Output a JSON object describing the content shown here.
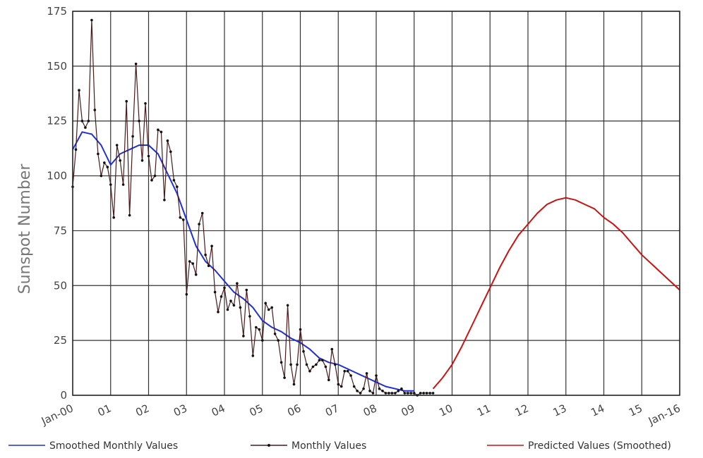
{
  "chart_data": {
    "type": "line",
    "title": "",
    "xlabel": "",
    "ylabel": "Sunspot Number",
    "xlim": [
      2000.0,
      2016.0
    ],
    "ylim": [
      0,
      175
    ],
    "grid": true,
    "legend_position": "bottom",
    "y_ticks": [
      0,
      25,
      50,
      75,
      100,
      125,
      150,
      175
    ],
    "y_tick_labels": [
      "0",
      "25",
      "50",
      "75",
      "100",
      "125",
      "150",
      "175"
    ],
    "x_ticks": [
      2000,
      2001,
      2002,
      2003,
      2004,
      2005,
      2006,
      2007,
      2008,
      2009,
      2010,
      2011,
      2012,
      2013,
      2014,
      2015,
      2016
    ],
    "x_tick_labels": [
      "Jan-00",
      "01",
      "02",
      "03",
      "04",
      "05",
      "06",
      "07",
      "08",
      "09",
      "10",
      "11",
      "12",
      "13",
      "14",
      "15",
      "Jan-16"
    ],
    "series": [
      {
        "name": "Smoothed Monthly Values",
        "color": "#1f2fd6",
        "marker": "none",
        "x": [
          2000.0,
          2000.25,
          2000.5,
          2000.75,
          2001.0,
          2001.25,
          2001.5,
          2001.75,
          2002.0,
          2002.25,
          2002.5,
          2002.75,
          2003.0,
          2003.25,
          2003.5,
          2003.75,
          2004.0,
          2004.25,
          2004.5,
          2004.75,
          2005.0,
          2005.25,
          2005.5,
          2005.75,
          2006.0,
          2006.25,
          2006.5,
          2006.75,
          2007.0,
          2007.25,
          2007.5,
          2007.75,
          2008.0,
          2008.25,
          2008.5,
          2008.75,
          2009.0
        ],
        "y": [
          112,
          120,
          119,
          114,
          105,
          110,
          112,
          114,
          114,
          110,
          101,
          92,
          80,
          68,
          61,
          57,
          52,
          47,
          44,
          40,
          34,
          31,
          29,
          26,
          24,
          21,
          17,
          15,
          14,
          12,
          10,
          8,
          6,
          4,
          3,
          2,
          2
        ]
      },
      {
        "name": "Monthly Values",
        "color": "#4a1a1a",
        "marker": "dot",
        "x": [
          2000.0,
          2000.083,
          2000.167,
          2000.25,
          2000.333,
          2000.417,
          2000.5,
          2000.583,
          2000.667,
          2000.75,
          2000.833,
          2000.917,
          2001.0,
          2001.083,
          2001.167,
          2001.25,
          2001.333,
          2001.417,
          2001.5,
          2001.583,
          2001.667,
          2001.75,
          2001.833,
          2001.917,
          2002.0,
          2002.083,
          2002.167,
          2002.25,
          2002.333,
          2002.417,
          2002.5,
          2002.583,
          2002.667,
          2002.75,
          2002.833,
          2002.917,
          2003.0,
          2003.083,
          2003.167,
          2003.25,
          2003.333,
          2003.417,
          2003.5,
          2003.583,
          2003.667,
          2003.75,
          2003.833,
          2003.917,
          2004.0,
          2004.083,
          2004.167,
          2004.25,
          2004.333,
          2004.417,
          2004.5,
          2004.583,
          2004.667,
          2004.75,
          2004.833,
          2004.917,
          2005.0,
          2005.083,
          2005.167,
          2005.25,
          2005.333,
          2005.417,
          2005.5,
          2005.583,
          2005.667,
          2005.75,
          2005.833,
          2005.917,
          2006.0,
          2006.083,
          2006.167,
          2006.25,
          2006.333,
          2006.417,
          2006.5,
          2006.583,
          2006.667,
          2006.75,
          2006.833,
          2006.917,
          2007.0,
          2007.083,
          2007.167,
          2007.25,
          2007.333,
          2007.417,
          2007.5,
          2007.583,
          2007.667,
          2007.75,
          2007.833,
          2007.917,
          2008.0,
          2008.083,
          2008.167,
          2008.25,
          2008.333,
          2008.417,
          2008.5,
          2008.583,
          2008.667,
          2008.75,
          2008.833,
          2008.917,
          2009.0,
          2009.083,
          2009.167,
          2009.25,
          2009.333,
          2009.417,
          2009.5
        ],
        "y": [
          95,
          112,
          139,
          125,
          122,
          125,
          171,
          130,
          110,
          100,
          106,
          104,
          96,
          81,
          114,
          107,
          96,
          134,
          82,
          118,
          151,
          125,
          107,
          133,
          109,
          98,
          100,
          121,
          120,
          89,
          116,
          111,
          98,
          95,
          81,
          80,
          46,
          61,
          60,
          55,
          78,
          83,
          64,
          59,
          68,
          47,
          38,
          45,
          49,
          39,
          43,
          41,
          51,
          40,
          27,
          48,
          36,
          18,
          31,
          30,
          25,
          42,
          39,
          40,
          28,
          25,
          15,
          8,
          41,
          14,
          5,
          14,
          30,
          20,
          14,
          11,
          13,
          14,
          16,
          16,
          13,
          7,
          21,
          14,
          5,
          4,
          11,
          11,
          9,
          4,
          2,
          1,
          3,
          10,
          2,
          1,
          9,
          3,
          2,
          1,
          1,
          1,
          1,
          2,
          3,
          1,
          1,
          1,
          1,
          0,
          1,
          1,
          1,
          1,
          1
        ]
      },
      {
        "name": "Predicted Values (Smoothed)",
        "color": "#cc1111",
        "marker": "none",
        "x": [
          2009.5,
          2009.75,
          2010.0,
          2010.25,
          2010.5,
          2010.75,
          2011.0,
          2011.25,
          2011.5,
          2011.75,
          2012.0,
          2012.25,
          2012.5,
          2012.75,
          2013.0,
          2013.25,
          2013.5,
          2013.75,
          2014.0,
          2014.25,
          2014.5,
          2014.75,
          2015.0,
          2015.25,
          2015.5,
          2015.75,
          2016.0
        ],
        "y": [
          3,
          8,
          14,
          22,
          31,
          40,
          49,
          58,
          66,
          73,
          78,
          83,
          87,
          89,
          90,
          89,
          87,
          85,
          81,
          78,
          74,
          69,
          64,
          60,
          56,
          52,
          48
        ]
      }
    ]
  },
  "legend": [
    {
      "label": "Smoothed Monthly Values",
      "color": "#1f2fd6",
      "marker": "none"
    },
    {
      "label": "Monthly Values",
      "color": "#4a1a1a",
      "marker": "dot"
    },
    {
      "label": "Predicted Values (Smoothed)",
      "color": "#cc1111",
      "marker": "none"
    }
  ]
}
